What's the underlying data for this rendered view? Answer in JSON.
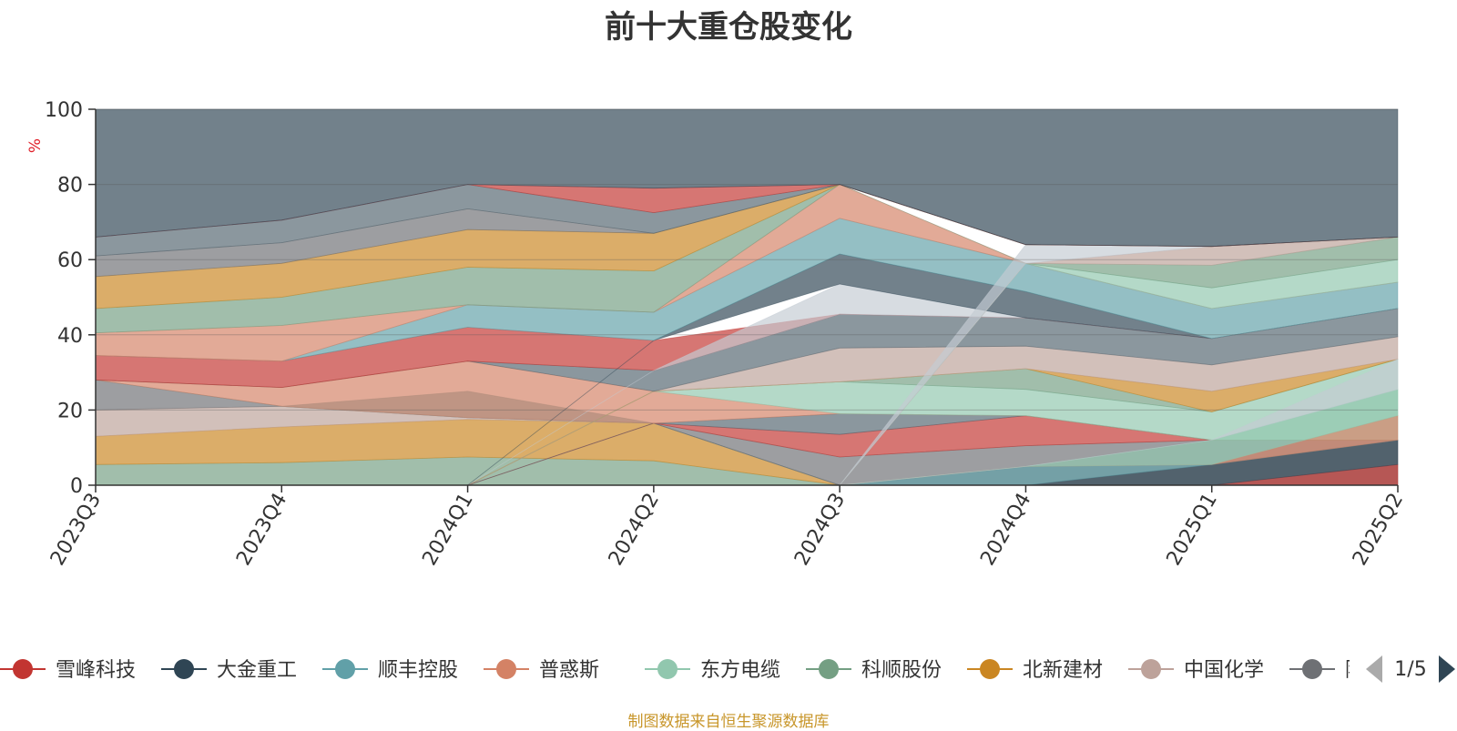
{
  "title": "前十大重仓股变化",
  "ylabel": "%",
  "footnote": "制图数据来自恒生聚源数据库",
  "legend_page": "1/5",
  "colors": {
    "雪峰科技": "#c23531",
    "大金重工": "#2f4554",
    "顺丰控股": "#61a0a8",
    "普惑斯": "#d48265",
    "东方电缆": "#91c7ae",
    "科顺股份": "#749f83",
    "北新建材": "#ca8622",
    "中国化学": "#bda29a",
    "隆基": "#6e7074",
    "other_1": "#546570",
    "other_2": "#c4ccd3"
  },
  "legend": [
    {
      "name": "雪峰科技",
      "color": "#c23531"
    },
    {
      "name": "大金重工",
      "color": "#2f4554"
    },
    {
      "name": "顺丰控股",
      "color": "#61a0a8"
    },
    {
      "name": "普惑斯",
      "color": "#d48265"
    },
    {
      "name": "东方电缆",
      "color": "#91c7ae"
    },
    {
      "name": "科顺股份",
      "color": "#749f83"
    },
    {
      "name": "北新建材",
      "color": "#ca8622"
    },
    {
      "name": "中国化学",
      "color": "#bda29a"
    },
    {
      "name": "隆",
      "color": "#6e7074"
    }
  ],
  "chart_data": {
    "type": "area",
    "title": "前十大重仓股变化",
    "xlabel": "",
    "ylabel": "%",
    "ylim": [
      0,
      100
    ],
    "yticks": [
      0,
      20,
      40,
      60,
      80,
      100
    ],
    "categories": [
      "2023Q3",
      "2023Q4",
      "2024Q1",
      "2024Q2",
      "2024Q3",
      "2024Q4",
      "2025Q1",
      "2025Q2"
    ],
    "grid": true,
    "legend_position": "bottom",
    "bands": [
      {
        "color": "#749f83",
        "lower": [
          0,
          0,
          0,
          0,
          0,
          0,
          0,
          0
        ],
        "upper": [
          5.5,
          6,
          7.5,
          6.5,
          0,
          0,
          0,
          0
        ]
      },
      {
        "color": "#ca8622",
        "lower": [
          5.5,
          6,
          7.5,
          6.5,
          0,
          0,
          0,
          0
        ],
        "upper": [
          13,
          15.5,
          17.5,
          16.5,
          0,
          0,
          0,
          0
        ]
      },
      {
        "color": "#bda29a",
        "lower": [
          13,
          15.5,
          17.5,
          16.5,
          0,
          0,
          0,
          0
        ],
        "upper": [
          20,
          21,
          18,
          16.5,
          0,
          0,
          0,
          0
        ]
      },
      {
        "color": "#6e7074",
        "lower": [
          20,
          21,
          18,
          16.5,
          0,
          0,
          0,
          0
        ],
        "upper": [
          28,
          21,
          18,
          16.5,
          0,
          0,
          0,
          0
        ]
      },
      {
        "color": "#61a0a8",
        "lower": [
          28,
          21,
          18,
          16.5,
          0,
          0,
          0,
          0
        ],
        "upper": [
          28,
          21,
          25,
          16.5,
          0,
          0,
          0,
          0
        ]
      },
      {
        "color": "#6e7074",
        "lower": [
          0,
          0,
          0,
          16.5,
          0,
          0,
          0,
          0
        ],
        "upper": [
          0,
          0,
          0,
          16.5,
          7.5,
          10.5,
          12,
          12
        ]
      },
      {
        "color": "#c23531",
        "lower": [
          0,
          0,
          0,
          16.5,
          7.5,
          10.5,
          12,
          12
        ],
        "upper": [
          0,
          0,
          0,
          16.5,
          13.5,
          18.5,
          12,
          12
        ]
      },
      {
        "color": "#546570",
        "lower": [
          0,
          0,
          0,
          16.5,
          13.5,
          18.5,
          12,
          12
        ],
        "upper": [
          0,
          0,
          0,
          16.5,
          19,
          18.5,
          12,
          12
        ]
      },
      {
        "color": "#d48265",
        "lower": [
          28,
          21,
          18,
          16.5,
          19,
          18.5,
          12,
          12
        ],
        "upper": [
          28,
          26,
          33,
          25,
          19,
          18.5,
          12,
          12
        ]
      },
      {
        "color": "#91c7ae",
        "lower": [
          0,
          0,
          0,
          25,
          19,
          18.5,
          12,
          12
        ],
        "upper": [
          0,
          0,
          0,
          25,
          27.5,
          25.5,
          19.5,
          33.5
        ]
      },
      {
        "color": "#749f83",
        "lower": [
          0,
          0,
          0,
          25,
          27.5,
          25.5,
          19.5,
          33.5
        ],
        "upper": [
          0,
          0,
          0,
          25,
          27.5,
          31,
          19.5,
          33.5
        ]
      },
      {
        "color": "#ca8622",
        "lower": [
          0,
          0,
          0,
          25,
          27.5,
          31,
          19.5,
          33.5
        ],
        "upper": [
          0,
          0,
          0,
          25,
          27.5,
          31,
          25,
          33.5
        ]
      },
      {
        "color": "#bda29a",
        "lower": [
          0,
          0,
          0,
          25,
          27.5,
          31,
          25,
          33.5
        ],
        "upper": [
          0,
          0,
          0,
          25,
          36.5,
          37,
          32,
          39.5
        ]
      },
      {
        "color": "#546570",
        "lower": [
          28,
          26,
          33,
          25,
          36.5,
          37,
          32,
          39.5
        ],
        "upper": [
          28,
          26,
          33,
          30.5,
          45.5,
          44.5,
          39,
          47
        ]
      },
      {
        "color": "#c23531",
        "lower": [
          28,
          26,
          33,
          30.5,
          45.5,
          44.5,
          39,
          47
        ],
        "upper": [
          34.5,
          33,
          42,
          38.5,
          45.5,
          44.5,
          39,
          47
        ]
      },
      {
        "color": "#c4ccd3",
        "lower": [
          0,
          0,
          0,
          30.5,
          45.5,
          44.5,
          39,
          47
        ],
        "upper": [
          0,
          0,
          0,
          30.5,
          53.5,
          44.5,
          39,
          47
        ]
      },
      {
        "color": "#2f4554",
        "lower": [
          0,
          0,
          0,
          38.5,
          53.5,
          44.5,
          39,
          47
        ],
        "upper": [
          0,
          0,
          0,
          38.5,
          61.5,
          51.5,
          39,
          47
        ]
      },
      {
        "color": "#61a0a8",
        "lower": [
          34.5,
          33,
          42,
          38.5,
          61.5,
          51.5,
          39,
          47
        ],
        "upper": [
          34.5,
          33,
          48,
          46,
          71,
          59,
          47,
          54
        ]
      },
      {
        "color": "#d48265",
        "lower": [
          34.5,
          33,
          48,
          46,
          71,
          59,
          47,
          54
        ],
        "upper": [
          40.5,
          42.5,
          48,
          46,
          80,
          59,
          47,
          54
        ]
      },
      {
        "color": "#91c7ae",
        "lower": [
          0,
          0,
          0,
          0,
          0,
          59,
          47,
          54
        ],
        "upper": [
          0,
          0,
          0,
          0,
          0,
          59,
          52.5,
          60
        ]
      },
      {
        "color": "#749f83",
        "lower": [
          40.5,
          42.5,
          48,
          46,
          80,
          59,
          52.5,
          60
        ],
        "upper": [
          47,
          50,
          58,
          57,
          80,
          59,
          58.5,
          66
        ]
      },
      {
        "color": "#bda29a",
        "lower": [
          0,
          0,
          0,
          0,
          0,
          59,
          58.5,
          66
        ],
        "upper": [
          0,
          0,
          0,
          0,
          0,
          59,
          63.5,
          66
        ]
      },
      {
        "color": "#c4ccd3",
        "lower": [
          0,
          0,
          0,
          0,
          0,
          59,
          63.5,
          66
        ],
        "upper": [
          0,
          0,
          0,
          0,
          0,
          64,
          63.5,
          66
        ]
      },
      {
        "color": "#ca8622",
        "lower": [
          47,
          50,
          58,
          57,
          80,
          64,
          63.5,
          66
        ],
        "upper": [
          55.5,
          59,
          68,
          67,
          80,
          64,
          63.5,
          66
        ]
      },
      {
        "color": "#6e7074",
        "lower": [
          55.5,
          59,
          68,
          67,
          80,
          64,
          63.5,
          66
        ],
        "upper": [
          61,
          64.5,
          73.5,
          67,
          80,
          64,
          63.5,
          66
        ]
      },
      {
        "color": "#546570",
        "lower": [
          61,
          64.5,
          73.5,
          67,
          80,
          64,
          63.5,
          66
        ],
        "upper": [
          66,
          70.5,
          80,
          72.5,
          80,
          64,
          63.5,
          66
        ]
      },
      {
        "color": "#c23531",
        "lower": [
          66,
          70.5,
          80,
          72.5,
          80,
          64,
          63.5,
          66
        ],
        "upper": [
          66,
          70.5,
          80,
          79,
          80,
          64,
          63.5,
          66
        ]
      },
      {
        "color": "#c23531",
        "lower": [
          0,
          0,
          0,
          0,
          0,
          0,
          0,
          0
        ],
        "upper": [
          0,
          0,
          0,
          0,
          0,
          0,
          0,
          5.5
        ]
      },
      {
        "color": "#2f4554",
        "lower": [
          0,
          0,
          0,
          0,
          0,
          0,
          0,
          5.5
        ],
        "upper": [
          0,
          0,
          0,
          0,
          0,
          0,
          5.5,
          12
        ]
      },
      {
        "color": "#61a0a8",
        "lower": [
          0,
          0,
          0,
          0,
          0,
          0,
          5.5,
          12
        ],
        "upper": [
          0,
          0,
          0,
          0,
          0,
          5,
          5.5,
          12
        ]
      },
      {
        "color": "#d48265",
        "lower": [
          0,
          0,
          0,
          0,
          0,
          5,
          5.5,
          12
        ],
        "upper": [
          0,
          0,
          0,
          0,
          0,
          5,
          5.5,
          18.5
        ]
      },
      {
        "color": "#91c7ae",
        "lower": [
          0,
          0,
          0,
          0,
          0,
          5,
          5.5,
          18.5
        ],
        "upper": [
          0,
          0,
          0,
          0,
          0,
          5,
          12,
          25.5
        ]
      },
      {
        "color": "#c4ccd3",
        "lower": [
          0,
          0,
          0,
          0,
          0,
          5,
          12,
          25.5
        ],
        "upper": [
          0,
          0,
          0,
          0,
          0,
          5,
          12,
          33.5
        ]
      },
      {
        "color": "#2f4554",
        "lower": [
          66,
          70.5,
          80,
          79,
          80,
          64,
          63.5,
          66
        ],
        "upper": [
          100,
          100,
          100,
          100,
          100,
          100,
          100,
          100
        ]
      }
    ]
  }
}
